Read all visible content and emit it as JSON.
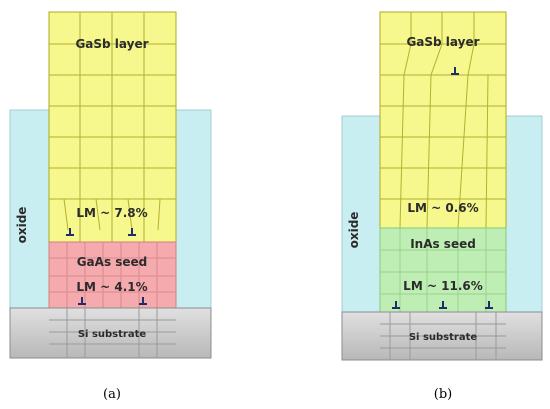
{
  "panels": [
    {
      "caption": "(a)",
      "layer_label": "GaSb layer",
      "seed_label": "GaAs seed",
      "lm_top": "LM ~ 7.8%",
      "lm_bottom": "LM ~ 4.1%",
      "oxide_label": "oxide",
      "substrate_label": "Si substrate",
      "seed_color": "#f5aaad"
    },
    {
      "caption": "(b)",
      "layer_label": "GaSb layer",
      "seed_label": "InAs seed",
      "lm_top": "LM ~ 0.6%",
      "lm_bottom": "LM ~ 11.6%",
      "oxide_label": "oxide",
      "substrate_label": "Si substrate",
      "seed_color": "#bfeeb4"
    }
  ],
  "colors": {
    "oxide": "#c9eef1",
    "layer": "#f6f78c",
    "grid_line": "#a9ab1e",
    "substrate_top": "#d9d9d9",
    "substrate_bottom": "#bdbdbd",
    "dislocation": "#1f2d6b"
  },
  "icons": {
    "dislocation": "dislocation-symbol-icon"
  }
}
